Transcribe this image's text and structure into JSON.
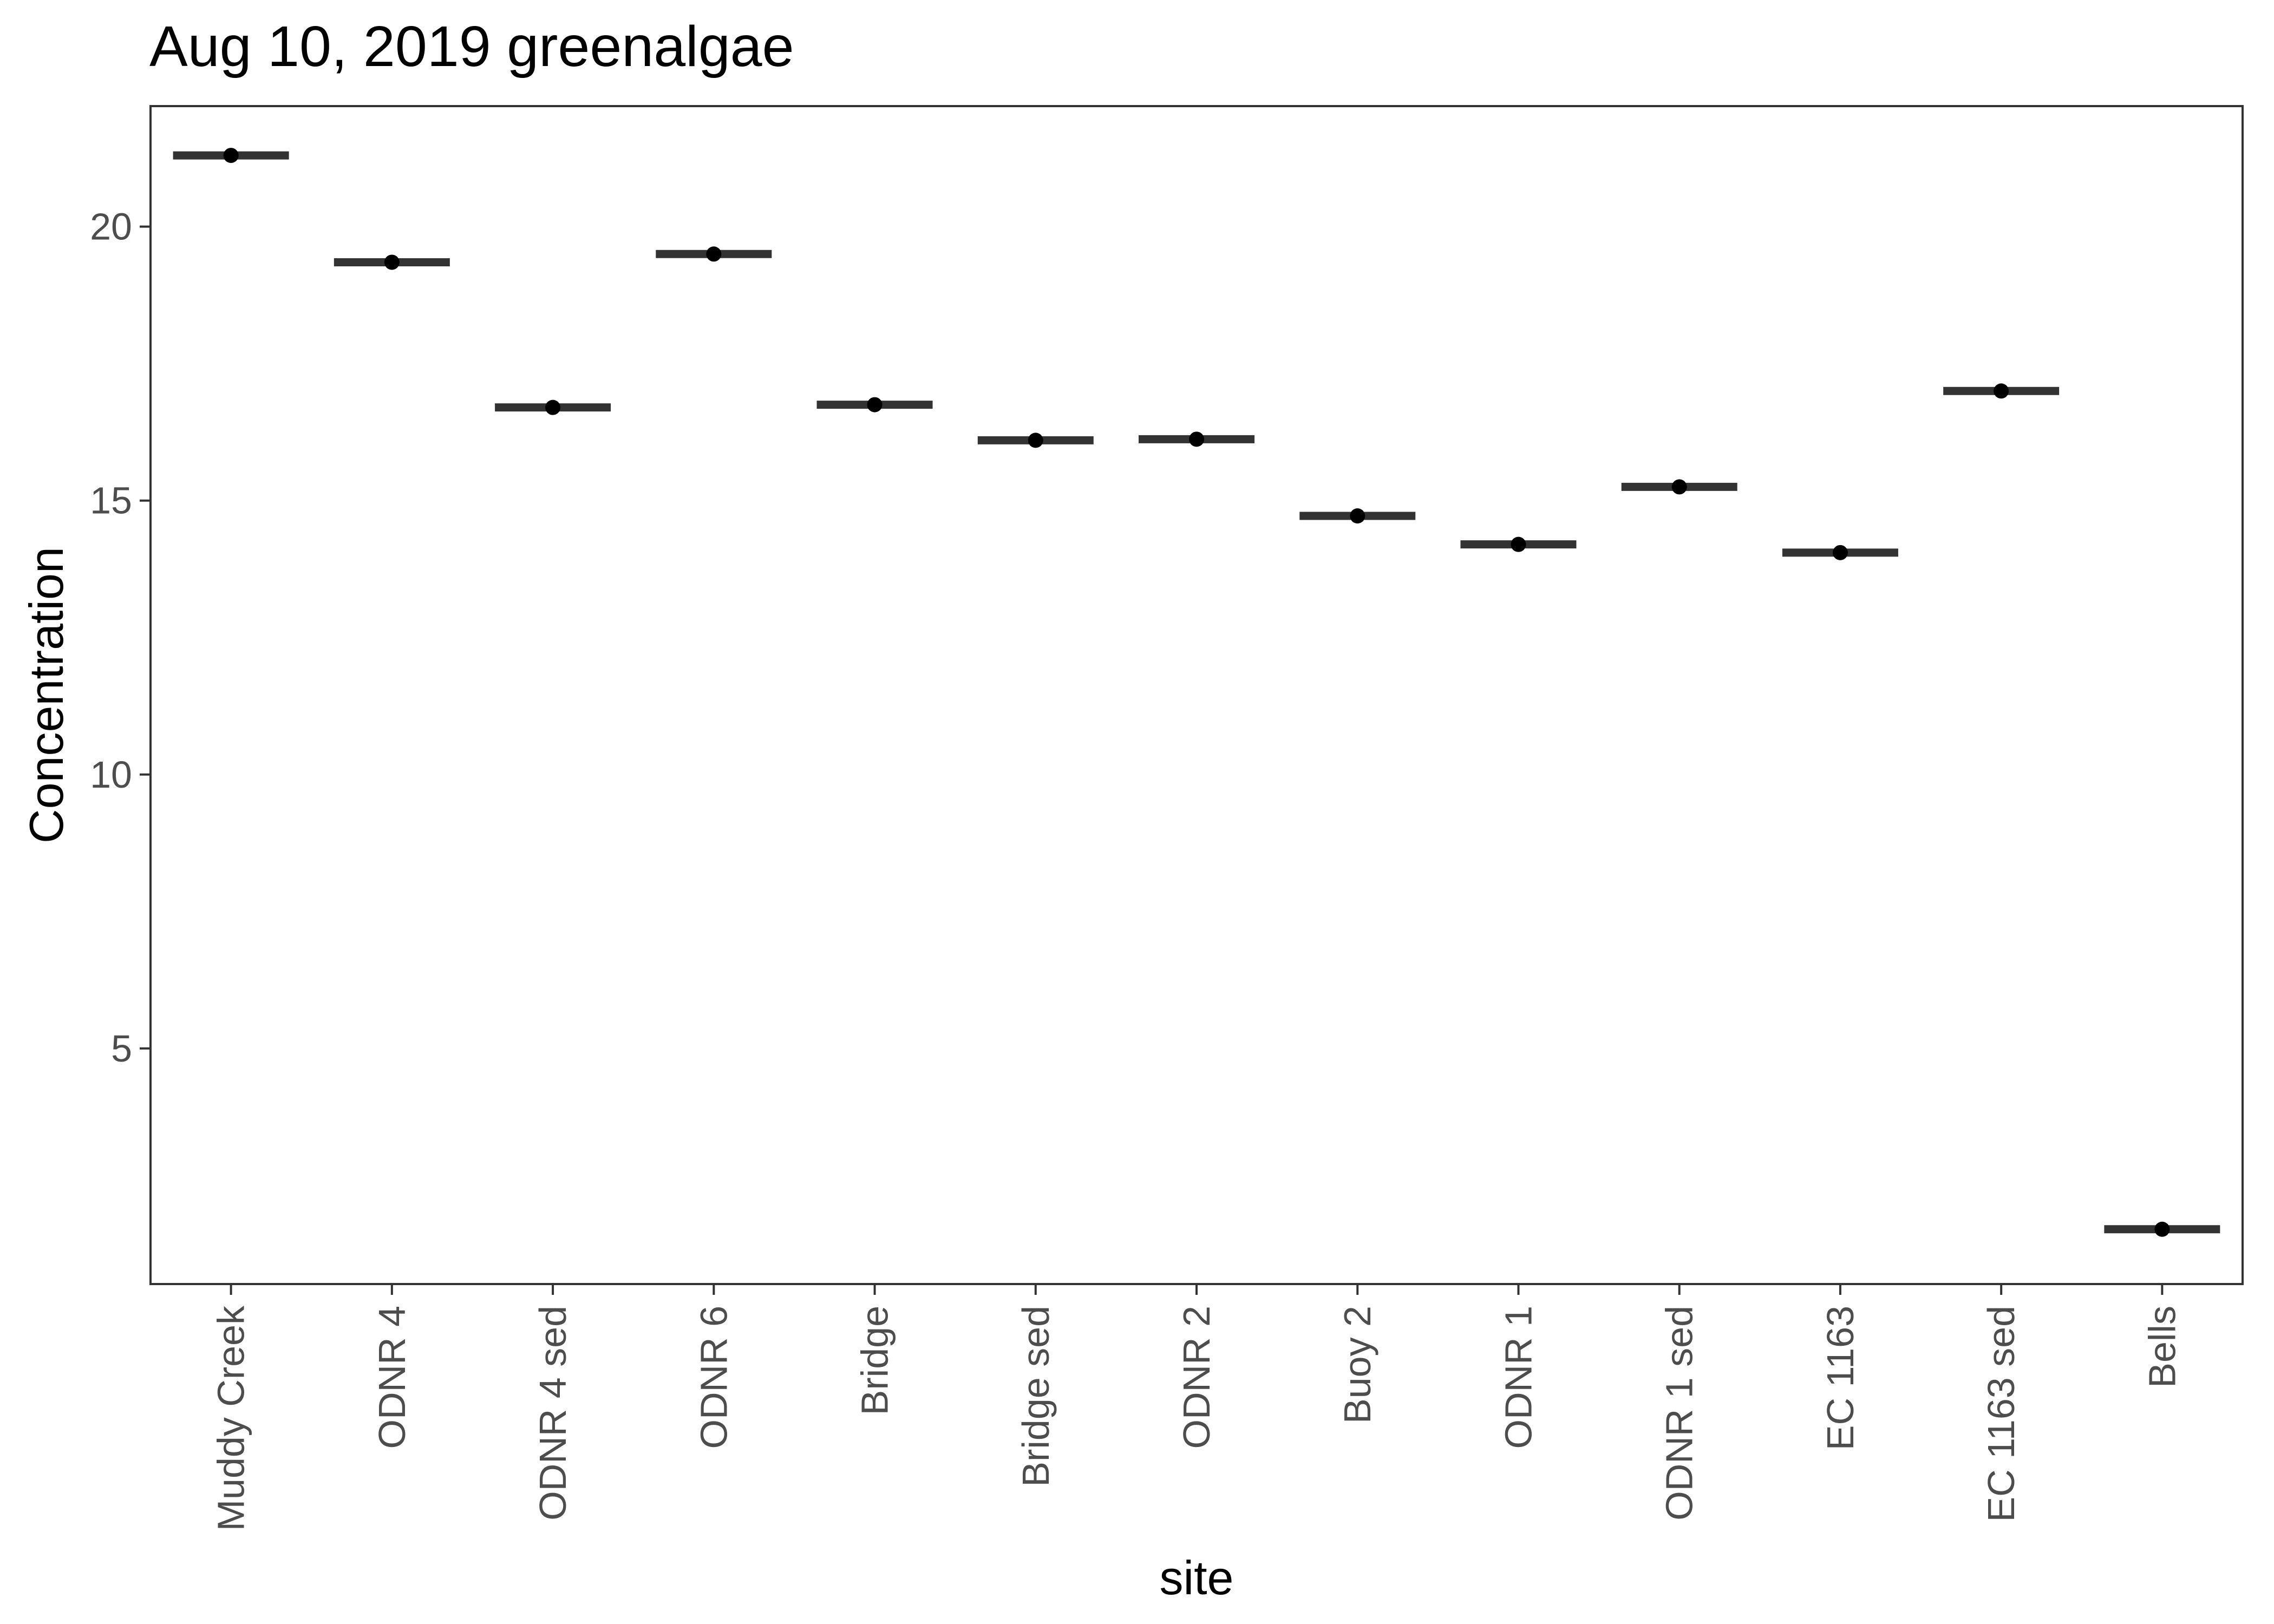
{
  "chart_data": {
    "type": "crossbar",
    "title": "Aug 10, 2019 greenalgae",
    "xlabel": "site",
    "ylabel": "Concentration",
    "categories": [
      "Muddy Creek",
      "ODNR 4",
      "ODNR 4 sed",
      "ODNR 6",
      "Bridge",
      "Bridge sed",
      "ODNR 2",
      "Buoy 2",
      "ODNR 1",
      "ODNR 1 sed",
      "EC 1163",
      "EC 1163 sed",
      "Bells"
    ],
    "values": [
      21.3,
      19.35,
      16.7,
      19.5,
      16.75,
      16.1,
      16.12,
      14.72,
      14.2,
      15.25,
      14.05,
      17.0,
      1.7
    ],
    "ylim": [
      0.7,
      22.2
    ],
    "yticks": [
      5,
      10,
      15,
      20
    ],
    "grid": false,
    "legend": "none",
    "colors": {
      "bar": "#333333",
      "point": "#000000",
      "axis": "#333333",
      "tick_text": "#4d4d4d"
    }
  }
}
